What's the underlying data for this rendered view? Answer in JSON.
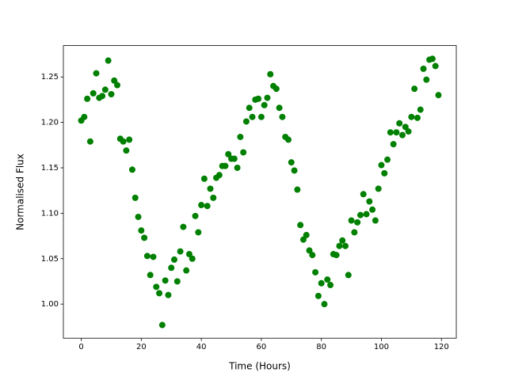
{
  "chart_data": {
    "type": "scatter",
    "xlabel": "Time (Hours)",
    "ylabel": "Normalised Flux",
    "color": "#008000",
    "x": [
      0,
      1,
      2,
      3,
      4,
      5,
      6,
      7,
      8,
      9,
      10,
      11,
      12,
      13,
      14,
      15,
      16,
      17,
      18,
      19,
      20,
      21,
      22,
      23,
      24,
      25,
      26,
      27,
      28,
      29,
      30,
      31,
      32,
      33,
      34,
      35,
      36,
      37,
      38,
      39,
      40,
      41,
      42,
      43,
      44,
      45,
      46,
      47,
      48,
      49,
      50,
      51,
      52,
      53,
      54,
      55,
      56,
      57,
      58,
      59,
      60,
      61,
      62,
      63,
      64,
      65,
      66,
      67,
      68,
      69,
      70,
      71,
      72,
      73,
      74,
      75,
      76,
      77,
      78,
      79,
      80,
      81,
      82,
      83,
      84,
      85,
      86,
      87,
      88,
      89,
      90,
      91,
      92,
      93,
      94,
      95,
      96,
      97,
      98,
      99,
      100,
      101,
      102,
      103,
      104,
      105,
      106,
      107,
      108,
      109,
      110,
      111,
      112,
      113,
      114,
      115,
      116,
      117,
      118,
      119
    ],
    "values": [
      1.202,
      1.206,
      1.226,
      1.179,
      1.232,
      1.254,
      1.227,
      1.229,
      1.236,
      1.268,
      1.231,
      1.246,
      1.241,
      1.182,
      1.179,
      1.169,
      1.181,
      1.148,
      1.117,
      1.096,
      1.081,
      1.073,
      1.053,
      1.032,
      1.052,
      1.019,
      1.012,
      0.977,
      1.026,
      1.01,
      1.04,
      1.049,
      1.025,
      1.058,
      1.085,
      1.037,
      1.055,
      1.05,
      1.097,
      1.079,
      1.109,
      1.138,
      1.108,
      1.127,
      1.117,
      1.139,
      1.142,
      1.152,
      1.152,
      1.165,
      1.16,
      1.16,
      1.15,
      1.184,
      1.167,
      1.201,
      1.216,
      1.206,
      1.225,
      1.226,
      1.206,
      1.219,
      1.227,
      1.253,
      1.24,
      1.237,
      1.216,
      1.206,
      1.184,
      1.181,
      1.156,
      1.147,
      1.126,
      1.087,
      1.071,
      1.076,
      1.059,
      1.054,
      1.035,
      1.009,
      1.023,
      1.0,
      1.027,
      1.021,
      1.055,
      1.054,
      1.064,
      1.07,
      1.064,
      1.032,
      1.092,
      1.079,
      1.09,
      1.098,
      1.121,
      1.099,
      1.113,
      1.104,
      1.092,
      1.127,
      1.153,
      1.144,
      1.159,
      1.189,
      1.176,
      1.189,
      1.199,
      1.186,
      1.195,
      1.19,
      1.206,
      1.237,
      1.205,
      1.214,
      1.259,
      1.247,
      1.269,
      1.27,
      1.262,
      1.23
    ],
    "xlim": [
      -5.95,
      124.95
    ],
    "xticks": [
      0,
      20,
      40,
      60,
      80,
      100,
      120
    ],
    "ylim": [
      0.9625,
      1.2845
    ],
    "yticks": [
      {
        "value": 1,
        "label": "1.00"
      },
      1.05,
      {
        "value": 1.1,
        "label": "1.10"
      },
      1.15,
      {
        "value": 1.2,
        "label": "1.20"
      },
      1.25
    ]
  }
}
